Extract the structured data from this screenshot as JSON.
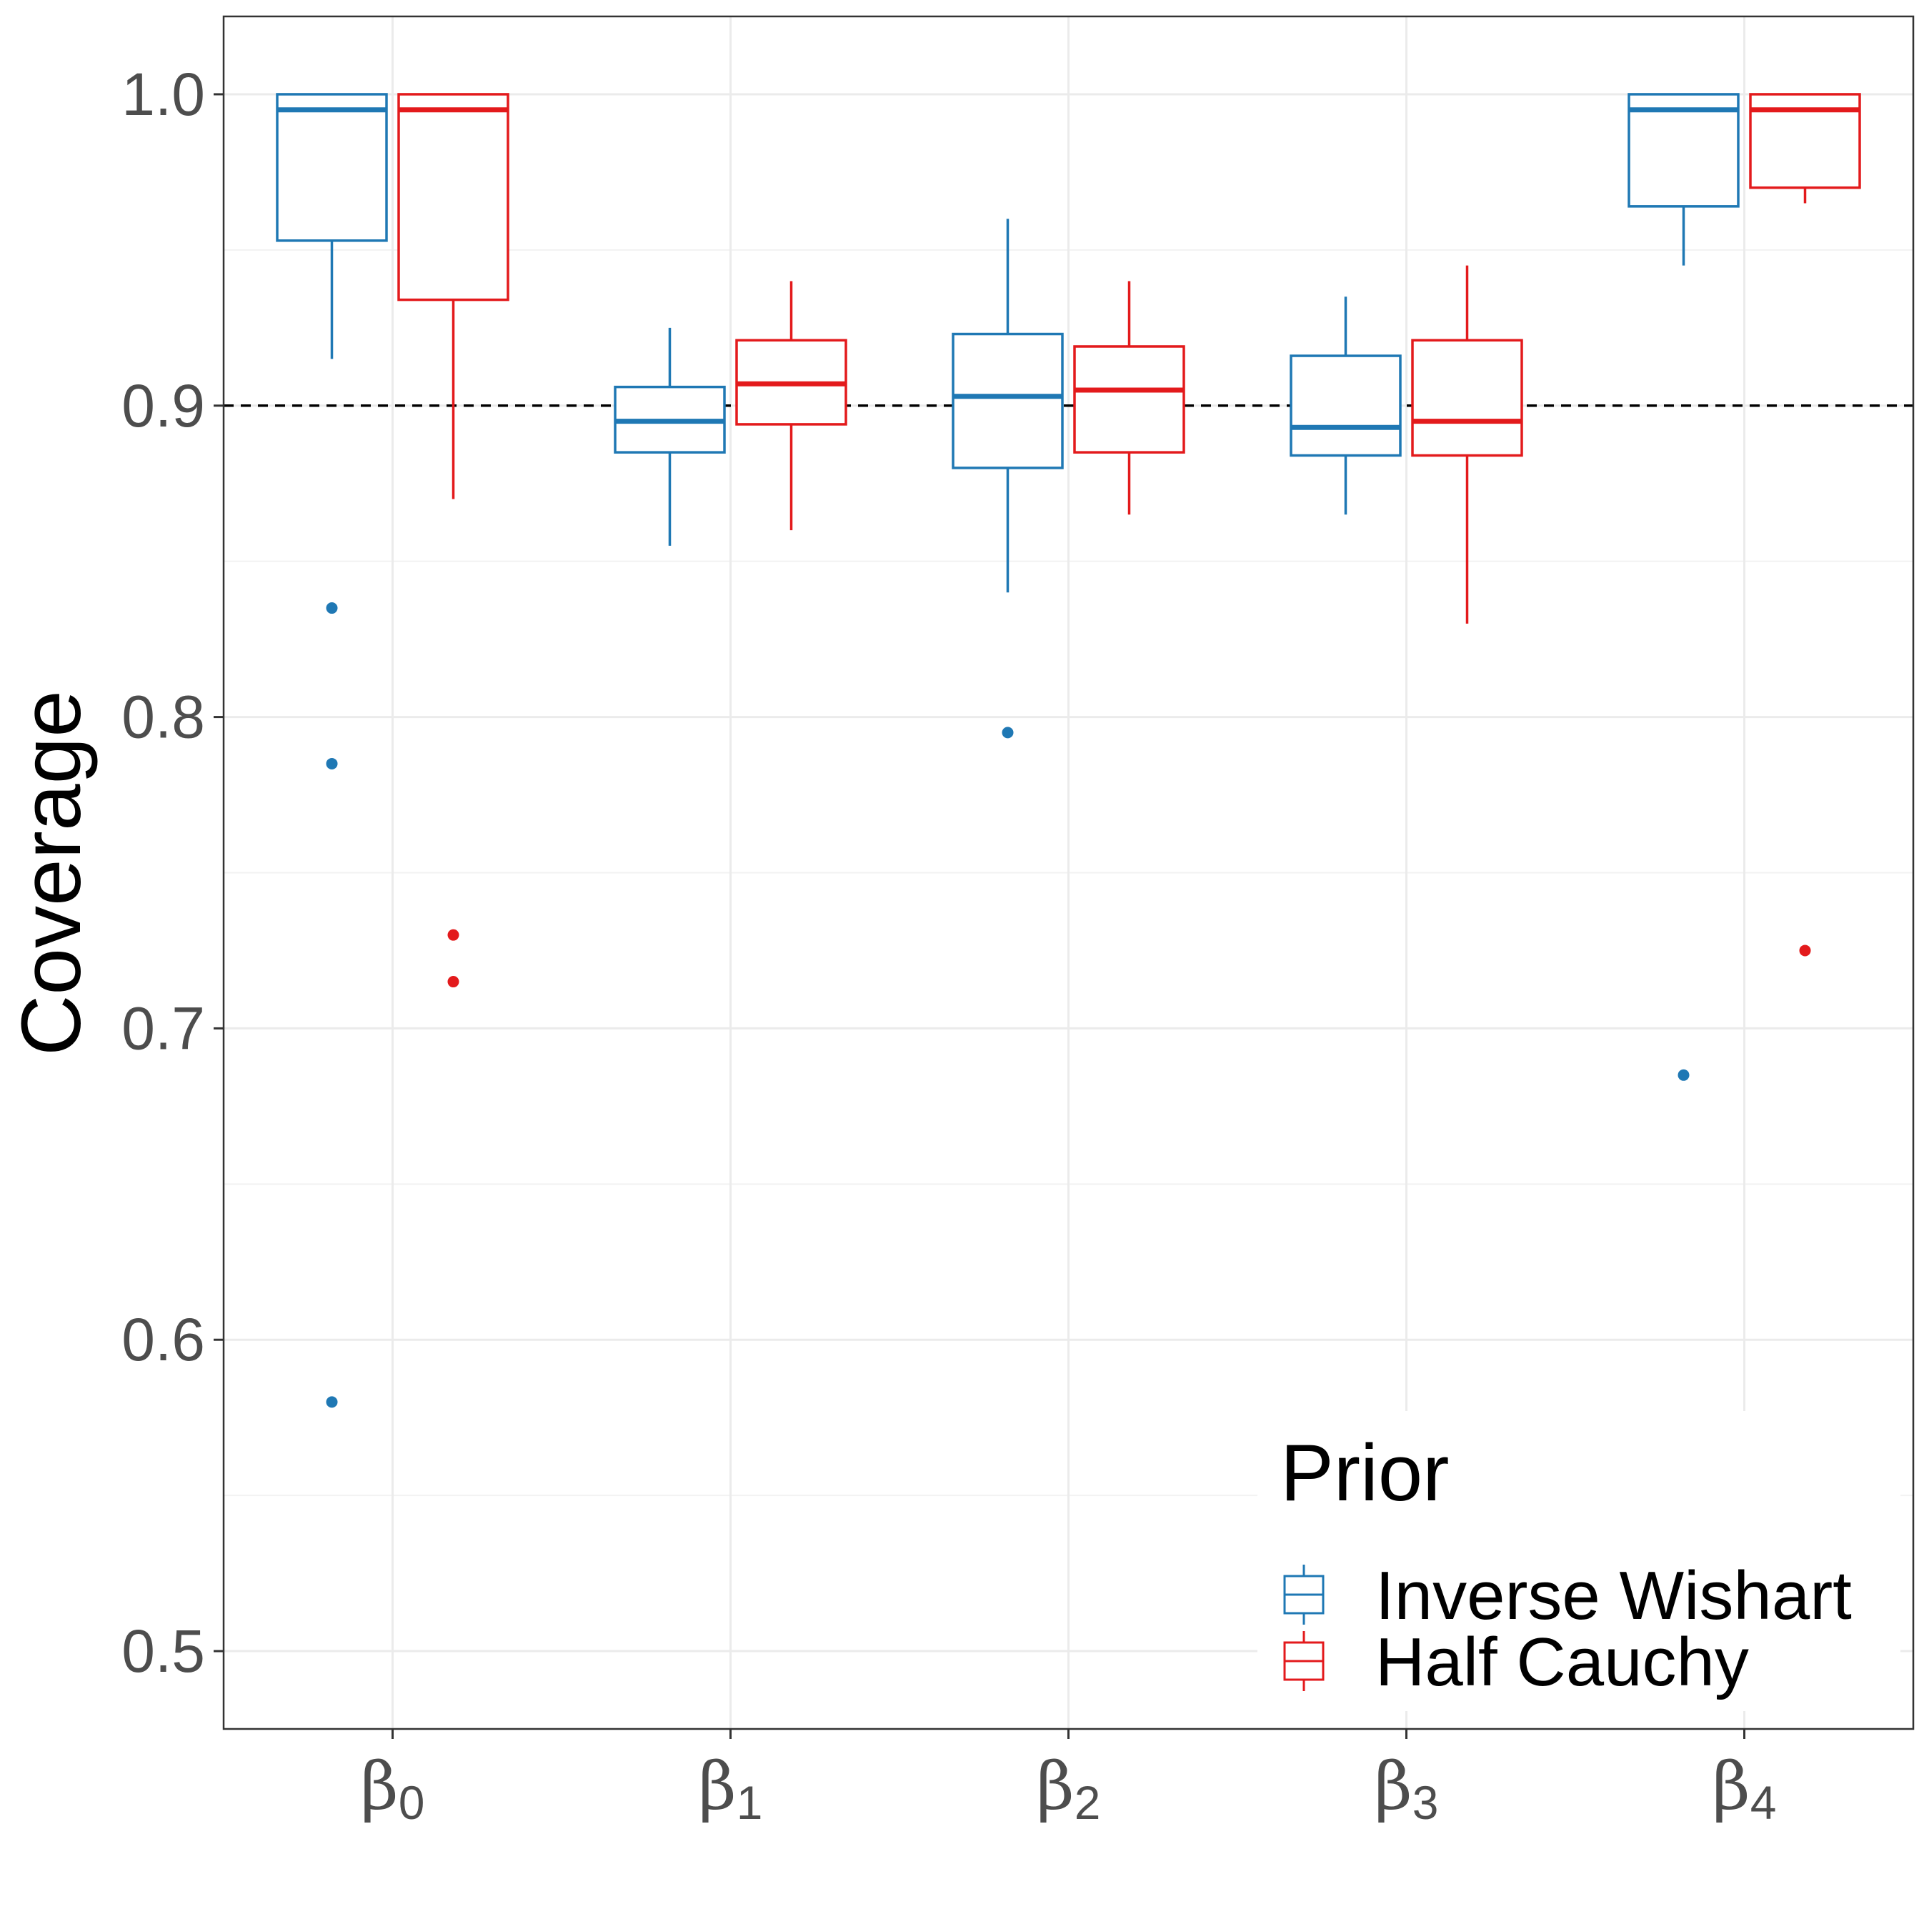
{
  "chart_data": {
    "type": "box",
    "ylabel": "Coverage",
    "ylim": [
      0.475,
      1.025
    ],
    "yticks": [
      "0.5",
      "0.6",
      "0.7",
      "0.8",
      "0.9",
      "1.0"
    ],
    "categories": [
      {
        "symbol": "β",
        "sub": "0"
      },
      {
        "symbol": "β",
        "sub": "1"
      },
      {
        "symbol": "β",
        "sub": "2"
      },
      {
        "symbol": "β",
        "sub": "3"
      },
      {
        "symbol": "β",
        "sub": "4"
      }
    ],
    "reference_line": {
      "y": 0.9,
      "style": "dashed"
    },
    "legend": {
      "title": "Prior",
      "placement": "bottom-right"
    },
    "grid": true,
    "series": [
      {
        "name": "Inverse Wishart",
        "color": "#1F78B4",
        "boxes": [
          {
            "q1": 0.953,
            "median": 0.995,
            "q3": 1.0,
            "lower": 0.915,
            "upper": 1.0,
            "outliers": [
              0.835,
              0.785,
              0.58
            ]
          },
          {
            "q1": 0.885,
            "median": 0.895,
            "q3": 0.906,
            "lower": 0.855,
            "upper": 0.925,
            "outliers": []
          },
          {
            "q1": 0.88,
            "median": 0.903,
            "q3": 0.923,
            "lower": 0.84,
            "upper": 0.96,
            "outliers": [
              0.795
            ]
          },
          {
            "q1": 0.884,
            "median": 0.893,
            "q3": 0.916,
            "lower": 0.865,
            "upper": 0.935,
            "outliers": []
          },
          {
            "q1": 0.964,
            "median": 0.995,
            "q3": 1.0,
            "lower": 0.945,
            "upper": 1.0,
            "outliers": [
              0.685
            ]
          }
        ]
      },
      {
        "name": "Half Cauchy",
        "color": "#E31A1C",
        "boxes": [
          {
            "q1": 0.934,
            "median": 0.995,
            "q3": 1.0,
            "lower": 0.87,
            "upper": 1.0,
            "outliers": [
              0.73,
              0.715
            ]
          },
          {
            "q1": 0.894,
            "median": 0.907,
            "q3": 0.921,
            "lower": 0.86,
            "upper": 0.94,
            "outliers": []
          },
          {
            "q1": 0.885,
            "median": 0.905,
            "q3": 0.919,
            "lower": 0.865,
            "upper": 0.94,
            "outliers": []
          },
          {
            "q1": 0.884,
            "median": 0.895,
            "q3": 0.921,
            "lower": 0.83,
            "upper": 0.945,
            "outliers": []
          },
          {
            "q1": 0.97,
            "median": 0.995,
            "q3": 1.0,
            "lower": 0.965,
            "upper": 1.0,
            "outliers": [
              0.725
            ]
          }
        ]
      }
    ]
  }
}
